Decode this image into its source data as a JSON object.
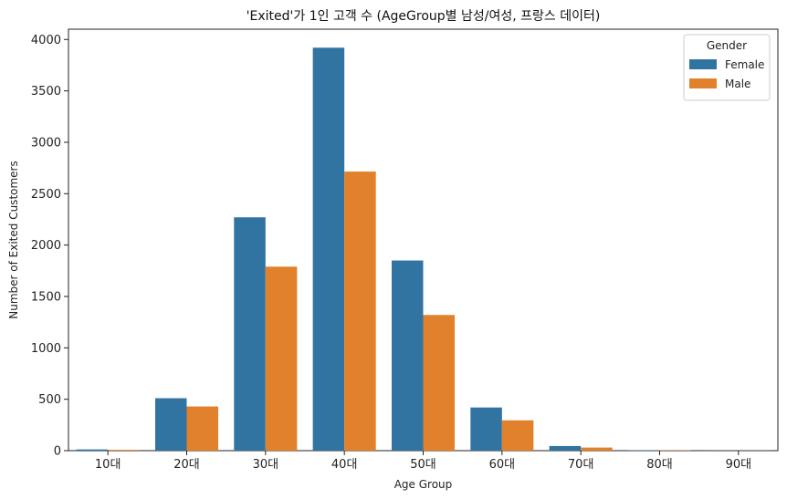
{
  "chart_data": {
    "type": "bar",
    "title": "'Exited'가 1인 고객 수 (AgeGroup별 남성/여성, 프랑스 데이터)",
    "xlabel": "Age Group",
    "ylabel": "Number of Exited Customers",
    "categories": [
      "10대",
      "20대",
      "30대",
      "40대",
      "50대",
      "60대",
      "70대",
      "80대",
      "90대"
    ],
    "series": [
      {
        "name": "Female",
        "color": "#3274a1",
        "values": [
          12,
          510,
          2270,
          3920,
          1850,
          420,
          45,
          3,
          1
        ]
      },
      {
        "name": "Male",
        "color": "#e1812c",
        "values": [
          8,
          430,
          1790,
          2715,
          1320,
          295,
          30,
          3,
          1
        ]
      }
    ],
    "ylim": [
      0,
      4100
    ],
    "yticks": [
      0,
      500,
      1000,
      1500,
      2000,
      2500,
      3000,
      3500,
      4000
    ],
    "legend": {
      "title": "Gender",
      "placement": "top-right"
    },
    "grid": false
  }
}
